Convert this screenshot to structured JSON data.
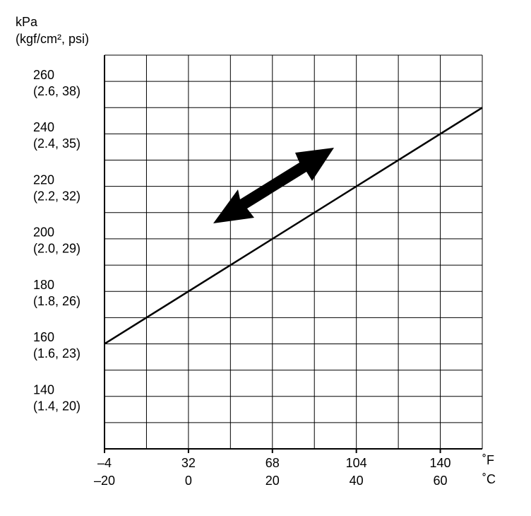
{
  "chart_data": {
    "type": "line",
    "y_label_lines": [
      "kPa",
      "(kgf/cm², psi)"
    ],
    "x": [
      -20,
      70
    ],
    "values": [
      160,
      250
    ],
    "color": "#000000",
    "xlim": [
      -20,
      70
    ],
    "ylim": [
      120,
      270
    ],
    "xticks": [
      {
        "value": -20,
        "label": "–20"
      },
      0,
      20,
      40,
      60
    ],
    "x_secondary_labels": [
      "–4",
      "32",
      "68",
      "104",
      "140"
    ],
    "x_units": [
      "˚F",
      "˚C"
    ],
    "yticks": [
      140,
      160,
      180,
      200,
      220,
      240,
      260
    ],
    "y_secondary_labels": [
      "(1.4, 20)",
      "(1.6, 23)",
      "(1.8, 26)",
      "(2.0, 29)",
      "(2.2, 32)",
      "(2.4, 35)",
      "(2.6, 38)"
    ],
    "xgrid": [
      -20,
      -10,
      0,
      10,
      20,
      30,
      40,
      50,
      60,
      70
    ],
    "ygrid": [
      120,
      130,
      140,
      150,
      160,
      170,
      180,
      190,
      200,
      210,
      220,
      230,
      240,
      250,
      260,
      270
    ]
  }
}
